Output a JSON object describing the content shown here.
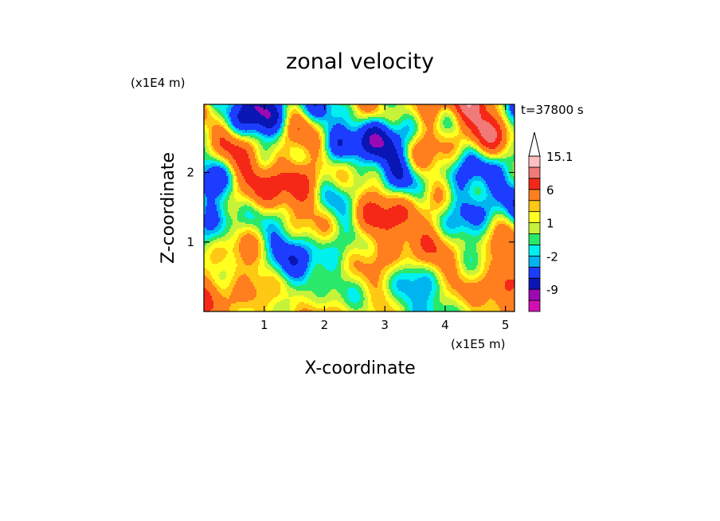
{
  "chart_data": {
    "type": "heatmap",
    "title": "zonal velocity",
    "time_label": "t=37800 s",
    "xlabel": "X-coordinate",
    "ylabel": "Z-coordinate",
    "x_scale_label": "(x1E5 m)",
    "y_scale_label": "(x1E4 m)",
    "xlim": [
      0,
      5.15
    ],
    "ylim": [
      0,
      2.98
    ],
    "x_ticks": [
      "1",
      "2",
      "3",
      "4",
      "5"
    ],
    "y_ticks": [
      "1",
      "2"
    ],
    "colorbar": {
      "labels": [
        "15.1",
        "6",
        "1",
        "-2",
        "-9"
      ],
      "levels": [
        -15,
        -12,
        -9,
        -6,
        -3,
        -2,
        -1,
        0,
        1,
        2,
        3,
        6,
        9,
        12,
        15.1
      ],
      "colors": [
        "#ff0aa5",
        "#d30fb2",
        "#9a09b3",
        "#0a16b3",
        "#1c3cff",
        "#00b4f0",
        "#00f0f0",
        "#2ae86a",
        "#c6f23a",
        "#ffff20",
        "#ffc814",
        "#ff7f1e",
        "#f52818",
        "#f07a78",
        "#ffc0c4",
        "#ffffff"
      ]
    }
  }
}
